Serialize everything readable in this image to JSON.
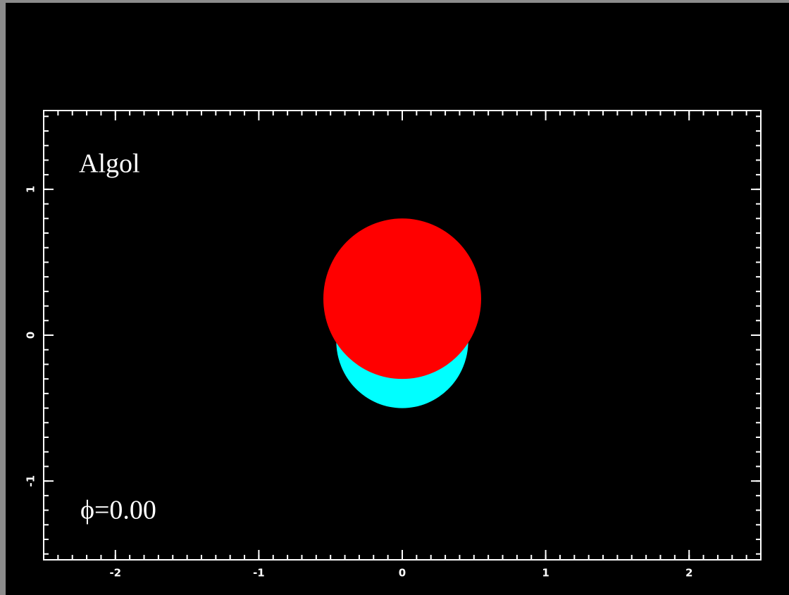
{
  "chart_data": {
    "type": "bubble",
    "annotations": [
      "Algol",
      "ϕ=0.00"
    ],
    "series": [
      {
        "color": "#00ffff",
        "x": [
          0
        ],
        "values": [
          -0.04
        ],
        "sizes": [
          0.46
        ]
      },
      {
        "color": "#ff0000",
        "x": [
          0
        ],
        "values": [
          0.25
        ],
        "sizes": [
          0.55
        ]
      }
    ],
    "xlim": [
      -2.5,
      2.5
    ],
    "xticks": [
      -2,
      -1,
      0,
      1,
      2
    ],
    "ylim": [
      -1.54,
      1.54
    ],
    "yticks": [
      -1,
      0,
      1
    ],
    "frame_color": "#ffffff",
    "background": "#000000"
  }
}
